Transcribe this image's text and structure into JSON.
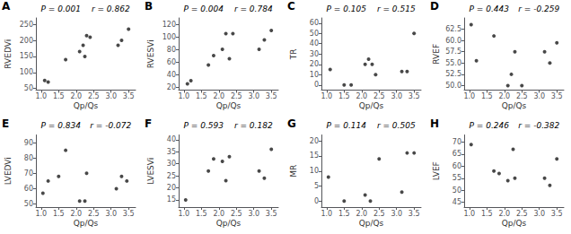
{
  "chart_data": [
    {
      "type": "scatter",
      "title": "A",
      "xlabel": "Qp/Qs",
      "ylabel": "RVEDVi",
      "annotations": [
        "P = 0.001",
        "r = 0.862"
      ],
      "color": "#1a1a1a",
      "grid": false,
      "x": [
        1.1,
        1.2,
        1.7,
        2.1,
        2.2,
        2.25,
        2.3,
        2.4,
        3.2,
        3.3,
        3.5
      ],
      "values": [
        75,
        70,
        140,
        165,
        185,
        150,
        215,
        210,
        185,
        200,
        235
      ],
      "xlim": [
        0.85,
        3.7
      ],
      "ylim": [
        45,
        270
      ],
      "xticks": [
        {
          "value": 1.0,
          "label": "1.0"
        },
        1.5,
        {
          "value": 2.0,
          "label": "2.0"
        },
        2.5,
        {
          "value": 3.0,
          "label": "3.0"
        },
        3.5
      ],
      "yticks": [
        50,
        100,
        150,
        200,
        250
      ]
    },
    {
      "type": "scatter",
      "title": "B",
      "xlabel": "Qp/Qs",
      "ylabel": "RVESVi",
      "annotations": [
        "P = 0.004",
        "r = 0.784"
      ],
      "color": "#1a1a1a",
      "grid": false,
      "x": [
        1.1,
        1.2,
        1.7,
        1.85,
        2.1,
        2.2,
        2.3,
        2.4,
        3.15,
        3.3,
        3.5
      ],
      "values": [
        25,
        30,
        55,
        70,
        80,
        105,
        65,
        105,
        80,
        95,
        110
      ],
      "xlim": [
        0.85,
        3.7
      ],
      "ylim": [
        15,
        130
      ],
      "xticks": [
        {
          "value": 1.0,
          "label": "1.0"
        },
        1.5,
        {
          "value": 2.0,
          "label": "2.0"
        },
        2.5,
        {
          "value": 3.0,
          "label": "3.0"
        },
        3.5
      ],
      "yticks": [
        20,
        40,
        60,
        80,
        100,
        120
      ]
    },
    {
      "type": "scatter",
      "title": "C",
      "xlabel": "Qp/Qs",
      "ylabel": "TR",
      "annotations": [
        "P = 0.105",
        "r = 0.515"
      ],
      "color": "#1a1a1a",
      "grid": false,
      "x": [
        1.1,
        1.5,
        1.7,
        2.1,
        2.2,
        2.3,
        2.4,
        3.15,
        3.3,
        3.5
      ],
      "values": [
        15,
        0,
        0,
        20,
        25,
        20,
        10,
        13,
        13,
        50
      ],
      "xlim": [
        0.85,
        3.7
      ],
      "ylim": [
        -5,
        65
      ],
      "xticks": [
        {
          "value": 1.0,
          "label": "1.0"
        },
        1.5,
        {
          "value": 2.0,
          "label": "2.0"
        },
        2.5,
        {
          "value": 3.0,
          "label": "3.0"
        },
        3.5
      ],
      "yticks": [
        0,
        10,
        20,
        30,
        40,
        50,
        60
      ]
    },
    {
      "type": "scatter",
      "title": "D",
      "xlabel": "Qp/Qs",
      "ylabel": "RVEF",
      "annotations": [
        "P = 0.443",
        "r = -0.259"
      ],
      "color": "#1a1a1a",
      "grid": false,
      "x": [
        1.05,
        1.2,
        1.7,
        2.1,
        2.2,
        2.3,
        2.5,
        3.15,
        3.3,
        3.5
      ],
      "values": [
        63.5,
        55.5,
        61,
        50,
        52.5,
        57.5,
        50,
        57.5,
        55,
        59.5
      ],
      "xlim": [
        0.85,
        3.7
      ],
      "ylim": [
        49,
        65
      ],
      "xticks": [
        {
          "value": 1.0,
          "label": "1.0"
        },
        1.5,
        {
          "value": 2.0,
          "label": "2.0"
        },
        2.5,
        {
          "value": 3.0,
          "label": "3.0"
        },
        3.5
      ],
      "yticks": [
        {
          "value": 50.0,
          "label": "50.0"
        },
        52.5,
        {
          "value": 55.0,
          "label": "55.0"
        },
        57.5,
        {
          "value": 60.0,
          "label": "60.0"
        },
        62.5
      ]
    },
    {
      "type": "scatter",
      "title": "E",
      "xlabel": "Qp/Qs",
      "ylabel": "LVEDVi",
      "annotations": [
        "P = 0.834",
        "r = -0.072"
      ],
      "color": "#1a1a1a",
      "grid": false,
      "x": [
        1.05,
        1.2,
        1.5,
        1.7,
        2.1,
        2.25,
        2.3,
        3.15,
        3.3,
        3.45
      ],
      "values": [
        57,
        65,
        68,
        85,
        52,
        52,
        70,
        60,
        68,
        65
      ],
      "xlim": [
        0.85,
        3.7
      ],
      "ylim": [
        48,
        95
      ],
      "xticks": [
        {
          "value": 1.0,
          "label": "1.0"
        },
        1.5,
        {
          "value": 2.0,
          "label": "2.0"
        },
        2.5,
        {
          "value": 3.0,
          "label": "3.0"
        },
        3.5
      ],
      "yticks": [
        50,
        60,
        70,
        80,
        90
      ]
    },
    {
      "type": "scatter",
      "title": "F",
      "xlabel": "Qp/Qs",
      "ylabel": "LVESVi",
      "annotations": [
        "P = 0.593",
        "r = 0.182"
      ],
      "color": "#1a1a1a",
      "grid": false,
      "x": [
        1.05,
        1.7,
        1.85,
        2.1,
        2.2,
        2.3,
        3.15,
        3.3,
        3.5
      ],
      "values": [
        15,
        27,
        32,
        31,
        23,
        33,
        27,
        24,
        36
      ],
      "xlim": [
        0.85,
        3.7
      ],
      "ylim": [
        12,
        42
      ],
      "xticks": [
        {
          "value": 1.0,
          "label": "1.0"
        },
        1.5,
        {
          "value": 2.0,
          "label": "2.0"
        },
        2.5,
        {
          "value": 3.0,
          "label": "3.0"
        },
        3.5
      ],
      "yticks": [
        15,
        20,
        25,
        30,
        35,
        40
      ]
    },
    {
      "type": "scatter",
      "title": "G",
      "xlabel": "Qp/Qs",
      "ylabel": "MR",
      "annotations": [
        "P = 0.114",
        "r = 0.505"
      ],
      "color": "#1a1a1a",
      "grid": false,
      "x": [
        1.05,
        1.5,
        2.1,
        2.25,
        2.5,
        3.15,
        3.3,
        3.5
      ],
      "values": [
        8,
        0,
        2,
        0,
        14,
        3,
        16,
        16
      ],
      "xlim": [
        0.85,
        3.7
      ],
      "ylim": [
        -2,
        22
      ],
      "xticks": [
        {
          "value": 1.0,
          "label": "1.0"
        },
        1.5,
        {
          "value": 2.0,
          "label": "2.0"
        },
        2.5,
        {
          "value": 3.0,
          "label": "3.0"
        },
        3.5
      ],
      "yticks": [
        0,
        5,
        10,
        15,
        20
      ]
    },
    {
      "type": "scatter",
      "title": "H",
      "xlabel": "Qp/Qs",
      "ylabel": "LVEF",
      "annotations": [
        "P = 0.246",
        "r = -0.382"
      ],
      "color": "#1a1a1a",
      "grid": false,
      "x": [
        1.05,
        1.7,
        1.85,
        2.1,
        2.25,
        2.3,
        3.15,
        3.3,
        3.5
      ],
      "values": [
        69,
        58,
        57,
        54,
        67,
        55,
        55,
        52,
        63
      ],
      "xlim": [
        0.85,
        3.7
      ],
      "ylim": [
        43,
        73
      ],
      "xticks": [
        {
          "value": 1.0,
          "label": "1.0"
        },
        1.5,
        {
          "value": 2.0,
          "label": "2.0"
        },
        2.5,
        {
          "value": 3.0,
          "label": "3.0"
        },
        3.5
      ],
      "yticks": [
        {
          "value": 45,
          "label": "45"
        },
        50,
        55,
        60,
        65,
        70
      ]
    }
  ]
}
